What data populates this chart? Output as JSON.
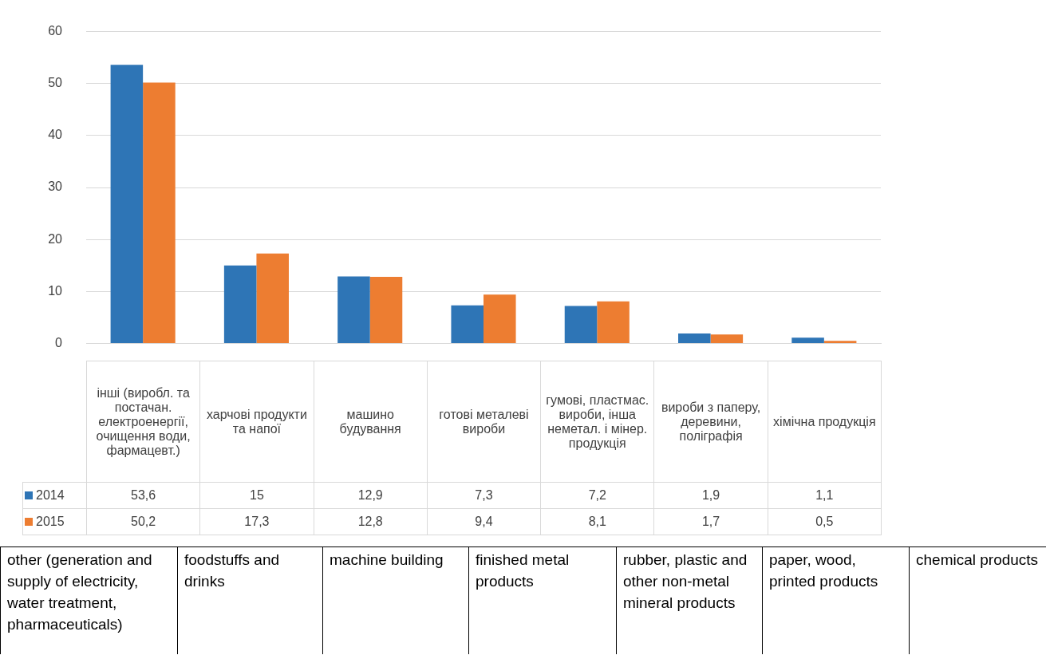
{
  "chart_data": {
    "type": "bar",
    "categories": [
      "інші (виробл. та постачан. електроенергії, очищення води, фармацевт.)",
      "харчові продукти та напої",
      "машино будування",
      "готові металеві вироби",
      "гумові, пластмас. вироби, інша неметал. і мінер. продукція",
      "вироби з паперу, деревини, поліграфія",
      "хімічна продукція"
    ],
    "series": [
      {
        "name": "2014",
        "color": "#2e75b6",
        "values": [
          53.6,
          15,
          12.9,
          7.3,
          7.2,
          1.9,
          1.1
        ],
        "value_labels": [
          "53,6",
          "15",
          "12,9",
          "7,3",
          "7,2",
          "1,9",
          "1,1"
        ]
      },
      {
        "name": "2015",
        "color": "#ed7d31",
        "values": [
          50.2,
          17.3,
          12.8,
          9.4,
          8.1,
          1.7,
          0.5
        ],
        "value_labels": [
          "50,2",
          "17,3",
          "12,8",
          "9,4",
          "8,1",
          "1,7",
          "0,5"
        ]
      }
    ],
    "ylim": [
      0,
      60
    ],
    "yticks": [
      0,
      10,
      20,
      30,
      40,
      50,
      60
    ],
    "grid": "y",
    "legend": "bottom",
    "annotations": [
      "other (generation and supply of electricity, water treatment, pharmaceuticals)",
      "foodstuffs and drinks",
      "machine building",
      "finished metal products",
      "rubber, plastic and other non-metal mineral products",
      "paper, wood, printed products",
      "chemical products"
    ]
  }
}
